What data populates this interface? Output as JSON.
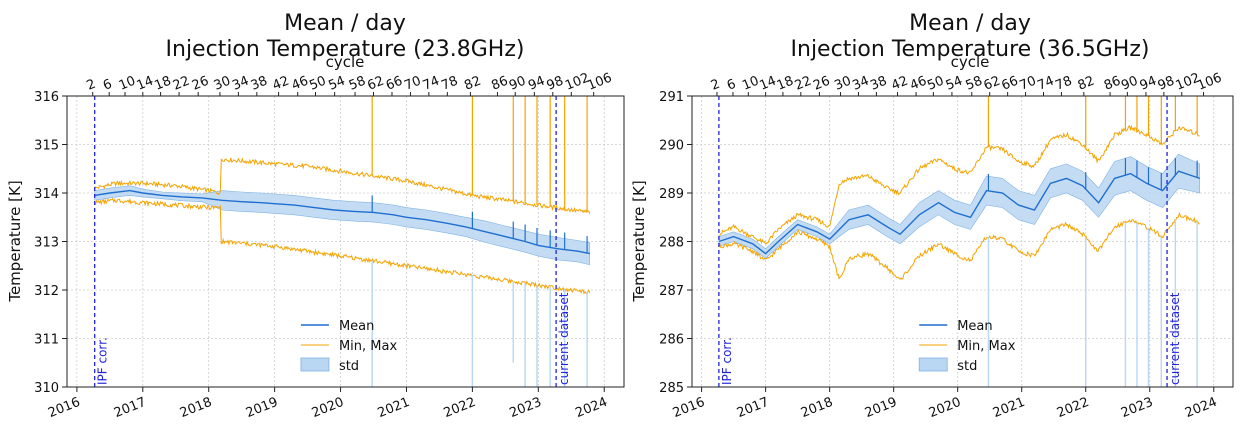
{
  "colors": {
    "mean": "#1f6fd0",
    "minmax": "#f5a300",
    "std_fill": "#b9d6f2",
    "std_edge": "#7fb2e5",
    "vline": "#2222dd",
    "grid": "#cccccc"
  },
  "chart_data": [
    {
      "type": "line",
      "title": "Mean / day",
      "subtitle": "Injection Temperature (23.8GHz)",
      "xlabel": "",
      "ylabel": "Temperature [K]",
      "top_xlabel": "cycle",
      "ylim": [
        310,
        316
      ],
      "xlim": [
        2015.85,
        2024.3
      ],
      "yticks": [
        310,
        311,
        312,
        313,
        314,
        315,
        316
      ],
      "xticks": [
        2016,
        2017,
        2018,
        2019,
        2020,
        2021,
        2022,
        2023,
        2024
      ],
      "top_ticks": [
        {
          "x": 2016.24,
          "label": "2"
        },
        {
          "x": 2016.49,
          "label": "6"
        },
        {
          "x": 2016.73,
          "label": "10"
        },
        {
          "x": 2017.0,
          "label": "14"
        },
        {
          "x": 2017.27,
          "label": "18"
        },
        {
          "x": 2017.55,
          "label": "22"
        },
        {
          "x": 2017.84,
          "label": "26"
        },
        {
          "x": 2018.17,
          "label": "30"
        },
        {
          "x": 2018.45,
          "label": "34"
        },
        {
          "x": 2018.73,
          "label": "38"
        },
        {
          "x": 2019.06,
          "label": "42"
        },
        {
          "x": 2019.35,
          "label": "46"
        },
        {
          "x": 2019.62,
          "label": "50"
        },
        {
          "x": 2019.91,
          "label": "54"
        },
        {
          "x": 2020.22,
          "label": "58"
        },
        {
          "x": 2020.5,
          "label": "62"
        },
        {
          "x": 2020.78,
          "label": "66"
        },
        {
          "x": 2021.06,
          "label": "70"
        },
        {
          "x": 2021.34,
          "label": "74"
        },
        {
          "x": 2021.62,
          "label": "78"
        },
        {
          "x": 2021.97,
          "label": "82"
        },
        {
          "x": 2022.38,
          "label": "86"
        },
        {
          "x": 2022.65,
          "label": "90"
        },
        {
          "x": 2022.94,
          "label": "94"
        },
        {
          "x": 2023.22,
          "label": "98"
        },
        {
          "x": 2023.5,
          "label": "102"
        },
        {
          "x": 2023.84,
          "label": "106"
        }
      ],
      "grid": true,
      "legend_position": "bottom-center",
      "vlines": [
        {
          "x": 2016.27,
          "label": "IPF corr."
        },
        {
          "x": 2023.27,
          "label": "current dataset"
        }
      ],
      "series": [
        {
          "name": "Mean",
          "x": [
            2016.27,
            2016.5,
            2016.8,
            2017.0,
            2017.3,
            2017.6,
            2017.9,
            2018.2,
            2018.5,
            2018.8,
            2019.0,
            2019.3,
            2019.6,
            2019.9,
            2020.2,
            2020.5,
            2020.8,
            2021.0,
            2021.3,
            2021.6,
            2021.9,
            2022.2,
            2022.5,
            2022.8,
            2023.0,
            2023.3,
            2023.6,
            2023.78
          ],
          "values": [
            313.95,
            314.0,
            314.05,
            314.0,
            313.95,
            313.92,
            313.9,
            313.85,
            313.82,
            313.8,
            313.78,
            313.75,
            313.7,
            313.65,
            313.62,
            313.6,
            313.55,
            313.5,
            313.45,
            313.38,
            313.3,
            313.2,
            313.1,
            313.0,
            312.92,
            312.85,
            312.8,
            312.75
          ]
        },
        {
          "name": "std",
          "x": [
            2016.27,
            2016.5,
            2016.8,
            2017.0,
            2017.3,
            2017.6,
            2017.9,
            2018.2,
            2018.5,
            2018.8,
            2019.0,
            2019.3,
            2019.6,
            2019.9,
            2020.2,
            2020.5,
            2020.8,
            2021.0,
            2021.3,
            2021.6,
            2021.9,
            2022.2,
            2022.5,
            2022.8,
            2023.0,
            2023.3,
            2023.6,
            2023.78
          ],
          "upper": [
            314.05,
            314.1,
            314.15,
            314.08,
            314.02,
            314.0,
            313.98,
            314.05,
            314.02,
            314.0,
            313.98,
            313.95,
            313.9,
            313.85,
            313.82,
            313.8,
            313.75,
            313.7,
            313.65,
            313.58,
            313.5,
            313.42,
            313.32,
            313.22,
            313.15,
            313.08,
            313.02,
            312.98
          ],
          "lower": [
            313.85,
            313.9,
            313.95,
            313.92,
            313.88,
            313.84,
            313.82,
            313.65,
            313.62,
            313.6,
            313.58,
            313.55,
            313.5,
            313.45,
            313.42,
            313.4,
            313.35,
            313.3,
            313.25,
            313.18,
            313.1,
            312.98,
            312.88,
            312.78,
            312.7,
            312.62,
            312.58,
            312.52
          ]
        },
        {
          "name": "Min, Max",
          "x": [
            2016.27,
            2016.6,
            2017.0,
            2017.5,
            2018.0,
            2018.18,
            2018.19,
            2018.6,
            2019.0,
            2019.5,
            2020.0,
            2020.5,
            2021.0,
            2021.5,
            2022.0,
            2022.5,
            2023.0,
            2023.5,
            2023.78
          ],
          "max": [
            314.1,
            314.2,
            314.2,
            314.15,
            314.05,
            314.0,
            314.7,
            314.65,
            314.6,
            314.55,
            314.45,
            314.35,
            314.25,
            314.1,
            313.95,
            313.85,
            313.75,
            313.65,
            313.6
          ],
          "min": [
            313.8,
            313.85,
            313.8,
            313.75,
            313.7,
            313.7,
            313.0,
            312.95,
            312.9,
            312.8,
            312.7,
            312.6,
            312.5,
            312.4,
            312.3,
            312.2,
            312.1,
            312.0,
            311.95
          ]
        }
      ],
      "spikes": [
        {
          "x": 2020.48,
          "max": 316,
          "min": 310
        },
        {
          "x": 2022.0,
          "max": 316,
          "min": 310
        },
        {
          "x": 2022.62,
          "max": 316,
          "min": 310.5
        },
        {
          "x": 2022.8,
          "max": 316,
          "min": 310
        },
        {
          "x": 2022.98,
          "max": 316,
          "min": 310
        },
        {
          "x": 2023.18,
          "max": 316,
          "min": 310
        },
        {
          "x": 2023.4,
          "max": 316,
          "min": 310
        },
        {
          "x": 2023.74,
          "max": 316,
          "min": 310
        }
      ]
    },
    {
      "type": "line",
      "title": "Mean / day",
      "subtitle": "Injection Temperature (36.5GHz)",
      "xlabel": "",
      "ylabel": "Temperature [K]",
      "top_xlabel": "cycle",
      "ylim": [
        285,
        291
      ],
      "xlim": [
        2015.85,
        2024.3
      ],
      "yticks": [
        285,
        286,
        287,
        288,
        289,
        290,
        291
      ],
      "xticks": [
        2016,
        2017,
        2018,
        2019,
        2020,
        2021,
        2022,
        2023,
        2024
      ],
      "top_ticks": [
        {
          "x": 2016.24,
          "label": "2"
        },
        {
          "x": 2016.49,
          "label": "6"
        },
        {
          "x": 2016.73,
          "label": "10"
        },
        {
          "x": 2017.0,
          "label": "14"
        },
        {
          "x": 2017.27,
          "label": "18"
        },
        {
          "x": 2017.55,
          "label": "22"
        },
        {
          "x": 2017.84,
          "label": "26"
        },
        {
          "x": 2018.17,
          "label": "30"
        },
        {
          "x": 2018.45,
          "label": "34"
        },
        {
          "x": 2018.73,
          "label": "38"
        },
        {
          "x": 2019.06,
          "label": "42"
        },
        {
          "x": 2019.35,
          "label": "46"
        },
        {
          "x": 2019.62,
          "label": "50"
        },
        {
          "x": 2019.91,
          "label": "54"
        },
        {
          "x": 2020.22,
          "label": "58"
        },
        {
          "x": 2020.5,
          "label": "62"
        },
        {
          "x": 2020.78,
          "label": "66"
        },
        {
          "x": 2021.06,
          "label": "70"
        },
        {
          "x": 2021.34,
          "label": "74"
        },
        {
          "x": 2021.62,
          "label": "78"
        },
        {
          "x": 2021.97,
          "label": "82"
        },
        {
          "x": 2022.38,
          "label": "86"
        },
        {
          "x": 2022.65,
          "label": "90"
        },
        {
          "x": 2022.94,
          "label": "94"
        },
        {
          "x": 2023.22,
          "label": "98"
        },
        {
          "x": 2023.5,
          "label": "102"
        },
        {
          "x": 2023.84,
          "label": "106"
        }
      ],
      "grid": true,
      "legend_position": "bottom-center",
      "vlines": [
        {
          "x": 2016.27,
          "label": "IPF corr."
        },
        {
          "x": 2023.27,
          "label": "current dataset"
        }
      ],
      "series": [
        {
          "name": "Mean",
          "x": [
            2016.27,
            2016.5,
            2016.8,
            2017.0,
            2017.2,
            2017.5,
            2017.8,
            2018.0,
            2018.3,
            2018.6,
            2018.9,
            2019.1,
            2019.4,
            2019.7,
            2019.95,
            2020.2,
            2020.45,
            2020.7,
            2020.95,
            2021.2,
            2021.45,
            2021.7,
            2021.95,
            2022.2,
            2022.45,
            2022.7,
            2022.95,
            2023.2,
            2023.45,
            2023.78
          ],
          "values": [
            288.0,
            288.1,
            287.95,
            287.75,
            288.0,
            288.35,
            288.2,
            288.05,
            288.45,
            288.55,
            288.3,
            288.15,
            288.55,
            288.8,
            288.6,
            288.5,
            289.05,
            289.0,
            288.75,
            288.65,
            289.2,
            289.3,
            289.15,
            288.8,
            289.3,
            289.4,
            289.2,
            289.05,
            289.45,
            289.3
          ]
        },
        {
          "name": "std",
          "x": [
            2016.27,
            2016.5,
            2016.8,
            2017.0,
            2017.2,
            2017.5,
            2017.8,
            2018.0,
            2018.3,
            2018.6,
            2018.9,
            2019.1,
            2019.4,
            2019.7,
            2019.95,
            2020.2,
            2020.45,
            2020.7,
            2020.95,
            2021.2,
            2021.45,
            2021.7,
            2021.95,
            2022.2,
            2022.45,
            2022.7,
            2022.95,
            2023.2,
            2023.45,
            2023.78
          ],
          "upper": [
            288.1,
            288.2,
            288.05,
            287.85,
            288.1,
            288.45,
            288.3,
            288.15,
            288.65,
            288.75,
            288.5,
            288.35,
            288.8,
            289.05,
            288.85,
            288.75,
            289.35,
            289.3,
            289.05,
            288.95,
            289.5,
            289.6,
            289.45,
            289.1,
            289.65,
            289.75,
            289.55,
            289.4,
            289.8,
            289.6
          ],
          "lower": [
            287.9,
            288.0,
            287.85,
            287.65,
            287.9,
            288.25,
            288.1,
            287.95,
            288.25,
            288.35,
            288.1,
            287.95,
            288.3,
            288.55,
            288.35,
            288.25,
            288.75,
            288.7,
            288.45,
            288.35,
            288.9,
            289.0,
            288.85,
            288.5,
            288.95,
            289.05,
            288.85,
            288.7,
            289.1,
            289.0
          ]
        },
        {
          "name": "Min, Max",
          "x": [
            2016.27,
            2016.5,
            2016.8,
            2017.0,
            2017.2,
            2017.5,
            2017.8,
            2018.0,
            2018.15,
            2018.3,
            2018.6,
            2018.9,
            2019.1,
            2019.4,
            2019.7,
            2019.95,
            2020.2,
            2020.45,
            2020.7,
            2020.95,
            2021.2,
            2021.45,
            2021.7,
            2021.95,
            2022.2,
            2022.45,
            2022.7,
            2022.95,
            2023.2,
            2023.45,
            2023.78
          ],
          "max": [
            288.15,
            288.3,
            288.1,
            287.95,
            288.25,
            288.55,
            288.45,
            288.3,
            289.2,
            289.3,
            289.35,
            289.1,
            289.0,
            289.5,
            289.7,
            289.5,
            289.4,
            289.95,
            289.9,
            289.65,
            289.55,
            290.1,
            290.2,
            290.0,
            289.65,
            290.2,
            290.35,
            290.2,
            290.0,
            290.35,
            290.2
          ],
          "min": [
            287.9,
            287.95,
            287.8,
            287.6,
            287.85,
            288.2,
            288.05,
            287.9,
            287.2,
            287.65,
            287.75,
            287.45,
            287.2,
            287.7,
            287.95,
            287.75,
            287.6,
            288.1,
            288.05,
            287.8,
            287.7,
            288.25,
            288.35,
            288.15,
            287.8,
            288.3,
            288.45,
            288.3,
            288.1,
            288.55,
            288.4
          ]
        }
      ],
      "spikes": [
        {
          "x": 2020.48,
          "max": 291,
          "min": 285
        },
        {
          "x": 2022.0,
          "max": 291,
          "min": 285
        },
        {
          "x": 2022.62,
          "max": 291,
          "min": 285
        },
        {
          "x": 2022.8,
          "max": 291,
          "min": 285
        },
        {
          "x": 2022.98,
          "max": 291,
          "min": 285
        },
        {
          "x": 2023.18,
          "max": 291,
          "min": 285
        },
        {
          "x": 2023.4,
          "max": 291,
          "min": 285
        },
        {
          "x": 2023.74,
          "max": 291,
          "min": 285
        }
      ]
    }
  ]
}
